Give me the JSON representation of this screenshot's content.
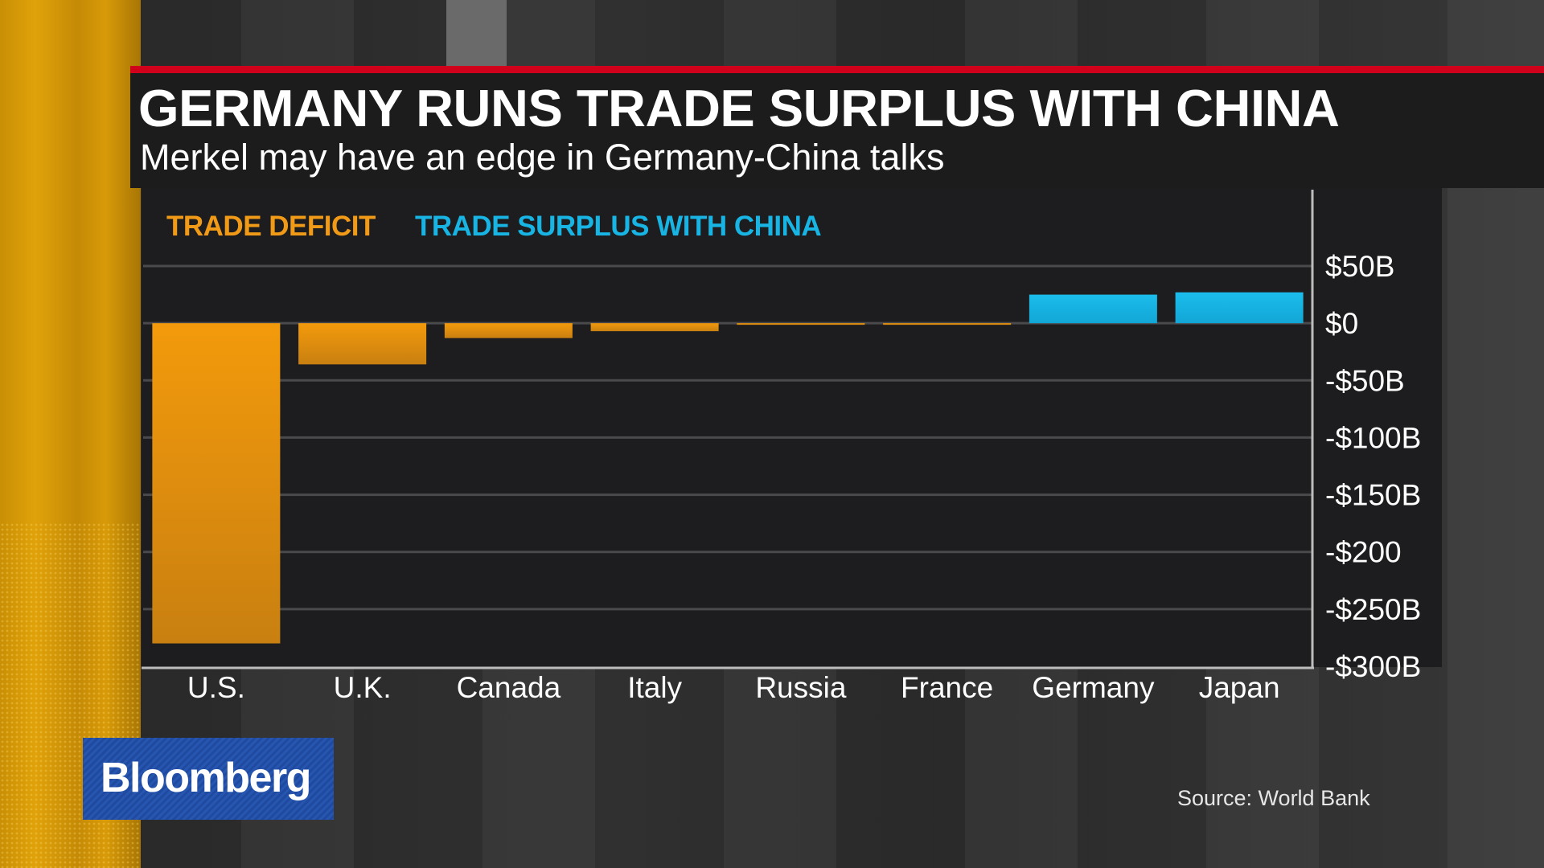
{
  "header": {
    "title": "GERMANY RUNS TRADE SURPLUS WITH CHINA",
    "subtitle": "Merkel may have an edge in Germany-China talks"
  },
  "legend": {
    "deficit_label": "TRADE DEFICIT",
    "surplus_label": "TRADE SURPLUS WITH CHINA"
  },
  "colors": {
    "deficit": "#f09a17",
    "surplus": "#18b4e3",
    "accent_red": "#d0021b",
    "brand_blue": "#2656b0"
  },
  "chart_data": {
    "type": "bar",
    "categories": [
      "U.S.",
      "U.K.",
      "Canada",
      "Italy",
      "Russia",
      "France",
      "Germany",
      "Japan"
    ],
    "values": [
      -280,
      -36,
      -13,
      -7,
      -1,
      -1,
      25,
      27
    ],
    "ylim": [
      -300,
      50
    ],
    "yticks": [
      50,
      0,
      -50,
      -100,
      -150,
      -200,
      -250,
      -300
    ],
    "ytick_labels": [
      "$50B",
      "$0",
      "-$50B",
      "-$100B",
      "-$150B",
      "-$200",
      "-$250B",
      "-$300B"
    ],
    "unit": "billion USD",
    "grid": true,
    "legend_position": "top-left"
  },
  "branding": {
    "logo_text": "Bloomberg"
  },
  "source": "Source: World Bank"
}
